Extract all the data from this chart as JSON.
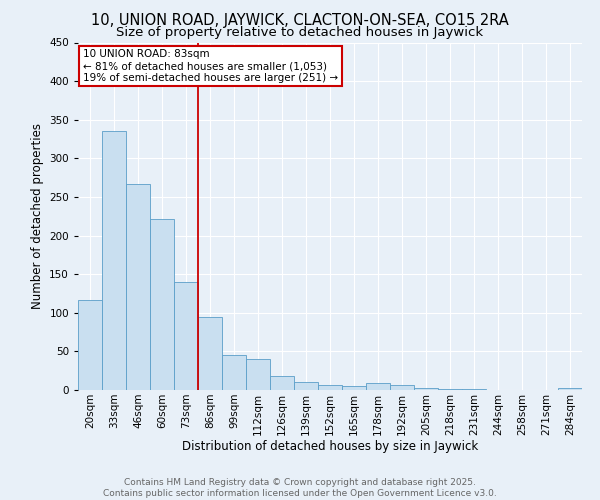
{
  "title1": "10, UNION ROAD, JAYWICK, CLACTON-ON-SEA, CO15 2RA",
  "title2": "Size of property relative to detached houses in Jaywick",
  "xlabel": "Distribution of detached houses by size in Jaywick",
  "ylabel": "Number of detached properties",
  "categories": [
    "20sqm",
    "33sqm",
    "46sqm",
    "60sqm",
    "73sqm",
    "86sqm",
    "99sqm",
    "112sqm",
    "126sqm",
    "139sqm",
    "152sqm",
    "165sqm",
    "178sqm",
    "192sqm",
    "205sqm",
    "218sqm",
    "231sqm",
    "244sqm",
    "258sqm",
    "271sqm",
    "284sqm"
  ],
  "values": [
    116,
    336,
    267,
    222,
    140,
    95,
    45,
    40,
    18,
    11,
    6,
    5,
    9,
    6,
    3,
    1,
    1,
    0,
    0,
    0,
    3
  ],
  "bar_color": "#c9dff0",
  "bar_edge_color": "#5a9ec9",
  "vline_x_index": 5,
  "vline_color": "#cc0000",
  "annotation_text": "10 UNION ROAD: 83sqm\n← 81% of detached houses are smaller (1,053)\n19% of semi-detached houses are larger (251) →",
  "annotation_box_facecolor": "#ffffff",
  "annotation_box_edgecolor": "#cc0000",
  "footer_text": "Contains HM Land Registry data © Crown copyright and database right 2025.\nContains public sector information licensed under the Open Government Licence v3.0.",
  "ylim": [
    0,
    450
  ],
  "yticks": [
    0,
    50,
    100,
    150,
    200,
    250,
    300,
    350,
    400,
    450
  ],
  "background_color": "#e8f0f8",
  "grid_color": "#ffffff",
  "title_fontsize": 10.5,
  "subtitle_fontsize": 9.5,
  "axis_label_fontsize": 8.5,
  "tick_fontsize": 7.5,
  "annotation_fontsize": 7.5,
  "footer_fontsize": 6.5,
  "footer_color": "#666666"
}
